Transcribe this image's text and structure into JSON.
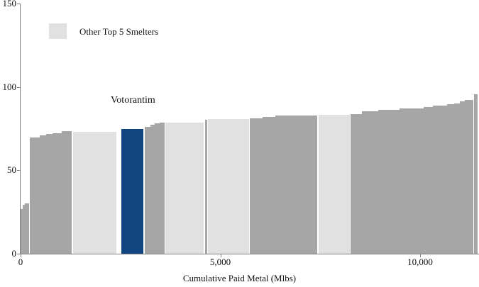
{
  "chart_data": {
    "type": "bar",
    "title": "",
    "xlabel": "Cumulative Paid Metal (Mlbs)",
    "ylabel": "",
    "xlim": [
      0,
      11475
    ],
    "ylim": [
      0,
      150
    ],
    "grid": false,
    "legend": {
      "label": "Other Top 5 Smelters",
      "position": "top-left"
    },
    "annotation": {
      "text": "Votorantim",
      "target": "votorantim-bar"
    },
    "x_ticks": [
      {
        "value": 0,
        "label": "0"
      },
      {
        "value": 5000,
        "label": "5,000"
      },
      {
        "value": 10000,
        "label": "10,000"
      }
    ],
    "y_ticks": [
      {
        "value": 0,
        "label": "0"
      },
      {
        "value": 50,
        "label": "50"
      },
      {
        "value": 100,
        "label": "100"
      },
      {
        "value": 150,
        "label": "150"
      }
    ],
    "series_colors": {
      "smelter": "#a6a6a6",
      "other_top5": "#e1e1e1",
      "votorantim": "#10457f"
    },
    "bars": [
      {
        "from": 0,
        "to": 62,
        "value": 26.8,
        "category": "smelter"
      },
      {
        "from": 62,
        "to": 115,
        "value": 29.3,
        "category": "smelter"
      },
      {
        "from": 115,
        "to": 222,
        "value": 30.2,
        "category": "smelter"
      },
      {
        "from": 222,
        "to": 480,
        "value": 69.9,
        "category": "smelter"
      },
      {
        "from": 480,
        "to": 639,
        "value": 71.1,
        "category": "smelter"
      },
      {
        "from": 639,
        "to": 799,
        "value": 71.8,
        "category": "smelter"
      },
      {
        "from": 799,
        "to": 1030,
        "value": 72.4,
        "category": "smelter"
      },
      {
        "from": 1030,
        "to": 1279,
        "value": 73.5,
        "category": "smelter"
      },
      {
        "from": 1314,
        "to": 2398,
        "value": 73.3,
        "category": "other_top5"
      },
      {
        "from": 2522,
        "to": 3081,
        "value": 74.9,
        "category": "votorantim"
      },
      {
        "from": 3108,
        "to": 3250,
        "value": 75.9,
        "category": "smelter"
      },
      {
        "from": 3250,
        "to": 3357,
        "value": 77.3,
        "category": "smelter"
      },
      {
        "from": 3357,
        "to": 3481,
        "value": 78.2,
        "category": "smelter"
      },
      {
        "from": 3481,
        "to": 3605,
        "value": 78.5,
        "category": "smelter"
      },
      {
        "from": 3632,
        "to": 4582,
        "value": 78.7,
        "category": "other_top5"
      },
      {
        "from": 4617,
        "to": 4670,
        "value": 80.2,
        "category": "smelter"
      },
      {
        "from": 4697,
        "to": 5718,
        "value": 80.6,
        "category": "other_top5"
      },
      {
        "from": 5736,
        "to": 6056,
        "value": 81.0,
        "category": "smelter"
      },
      {
        "from": 6056,
        "to": 6375,
        "value": 82.0,
        "category": "smelter"
      },
      {
        "from": 6375,
        "to": 6890,
        "value": 82.7,
        "category": "smelter"
      },
      {
        "from": 6890,
        "to": 7423,
        "value": 83.0,
        "category": "smelter"
      },
      {
        "from": 7467,
        "to": 8240,
        "value": 83.2,
        "category": "other_top5"
      },
      {
        "from": 8258,
        "to": 8542,
        "value": 83.8,
        "category": "smelter"
      },
      {
        "from": 8542,
        "to": 8951,
        "value": 85.3,
        "category": "smelter"
      },
      {
        "from": 8951,
        "to": 9484,
        "value": 86.3,
        "category": "smelter"
      },
      {
        "from": 9484,
        "to": 10088,
        "value": 87.2,
        "category": "smelter"
      },
      {
        "from": 10088,
        "to": 10318,
        "value": 87.9,
        "category": "smelter"
      },
      {
        "from": 10318,
        "to": 10674,
        "value": 88.7,
        "category": "smelter"
      },
      {
        "from": 10674,
        "to": 10851,
        "value": 89.6,
        "category": "smelter"
      },
      {
        "from": 10851,
        "to": 10993,
        "value": 90.3,
        "category": "smelter"
      },
      {
        "from": 10993,
        "to": 11118,
        "value": 91.3,
        "category": "smelter"
      },
      {
        "from": 11118,
        "to": 11340,
        "value": 92.1,
        "category": "smelter"
      },
      {
        "from": 11357,
        "to": 11446,
        "value": 95.5,
        "category": "smelter"
      }
    ]
  }
}
